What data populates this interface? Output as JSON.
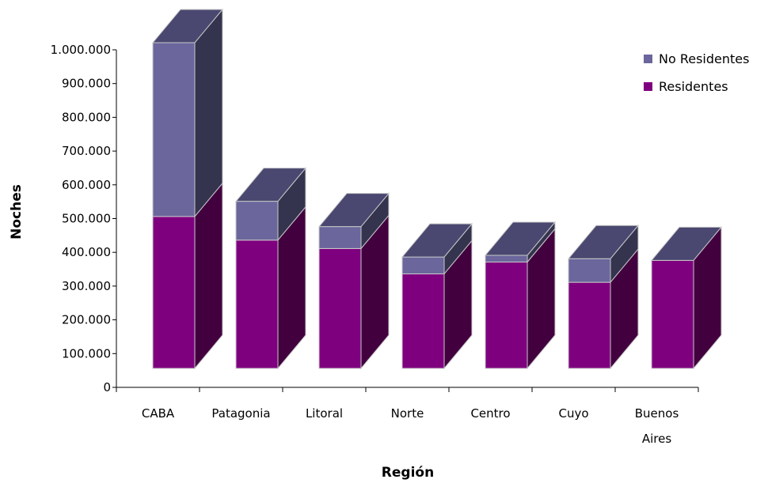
{
  "chart_data": {
    "type": "bar",
    "stacked": true,
    "three_d": true,
    "categories": [
      "CABA",
      "Patagonia",
      "Litoral",
      "Norte",
      "Centro",
      "Cuyo",
      "Buenos Aires"
    ],
    "series": [
      {
        "name": "Residentes",
        "values": [
          450000,
          380000,
          355000,
          280000,
          315000,
          255000,
          320000
        ],
        "color": "#7f007f"
      },
      {
        "name": "No Residentes",
        "values": [
          515000,
          115000,
          65000,
          50000,
          20000,
          70000,
          0
        ],
        "color": "#6b669c"
      }
    ],
    "ylabel": "Noches",
    "xlabel": "Región",
    "ylim": [
      0,
      1000000
    ],
    "yticks": [
      "0",
      "100.000",
      "200.000",
      "300.000",
      "400.000",
      "500.000",
      "600.000",
      "700.000",
      "800.000",
      "900.000",
      "1.000.000"
    ],
    "legend": {
      "position": "top-right",
      "order": [
        "No Residentes",
        "Residentes"
      ]
    },
    "grid": false,
    "colors": {
      "residentes_front": "#7f007f",
      "residentes_side": "#42003f",
      "noresidentes_front": "#6b669c",
      "noresidentes_side": "#35344f",
      "top": "#4a4870",
      "edge": "#c8c8c8"
    }
  }
}
